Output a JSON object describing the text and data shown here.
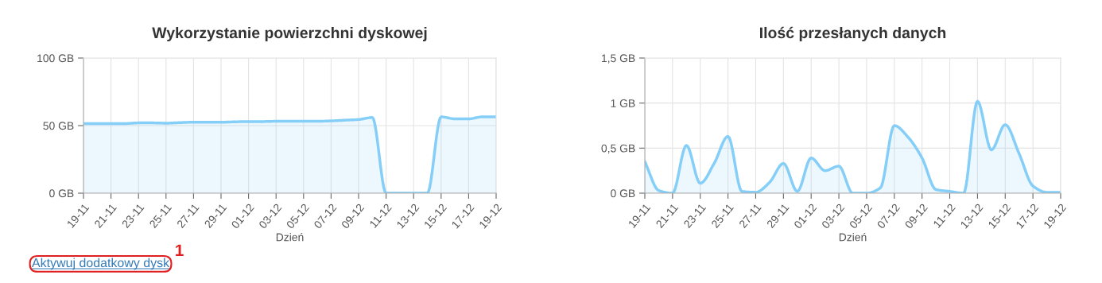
{
  "chart_data": [
    {
      "type": "area",
      "title": "Wykorzystanie powierzchni dyskowej",
      "xlabel": "Dzień",
      "categories": [
        "19-11",
        null,
        "21-11",
        null,
        "23-11",
        null,
        "25-11",
        null,
        "27-11",
        null,
        "29-11",
        null,
        "01-12",
        null,
        "03-12",
        null,
        "05-12",
        null,
        "07-12",
        null,
        "09-12",
        null,
        "11-12",
        null,
        "13-12",
        null,
        "15-12",
        null,
        "17-12",
        null,
        "19-12"
      ],
      "series": [
        {
          "color": "#84cef8",
          "values": [
            51.5,
            51.5,
            51.5,
            51.5,
            52,
            52,
            51.8,
            52.2,
            52.5,
            52.5,
            52.5,
            52.8,
            53,
            53,
            53.2,
            53.2,
            53.2,
            53.2,
            53.5,
            54,
            54.5,
            56,
            0,
            0,
            0,
            0,
            56.5,
            55,
            55,
            56.5,
            56.5
          ]
        }
      ],
      "ylim": [
        0,
        100
      ],
      "yticks": [
        {
          "value": 0,
          "label": "0 GB"
        },
        {
          "value": 50,
          "label": "50 GB"
        },
        {
          "value": 100,
          "label": "100 GB"
        }
      ],
      "grid": true,
      "annotations": [
        "Aktywuj dodatkowy dysk",
        "1"
      ]
    },
    {
      "type": "area",
      "title": "Ilość przesłanych danych",
      "xlabel": "Dzień",
      "categories": [
        "19-11",
        null,
        "21-11",
        null,
        "23-11",
        null,
        "25-11",
        null,
        "27-11",
        null,
        "29-11",
        null,
        "01-12",
        null,
        "03-12",
        null,
        "05-12",
        null,
        "07-12",
        null,
        "09-12",
        null,
        "11-12",
        null,
        "13-12",
        null,
        "15-12",
        null,
        "17-12",
        null,
        "19-12"
      ],
      "series": [
        {
          "color": "#84cef8",
          "values": [
            0.35,
            0.03,
            0,
            0.53,
            0.11,
            0.33,
            0.63,
            0.02,
            0.01,
            0.12,
            0.33,
            0.02,
            0.39,
            0.25,
            0.3,
            0,
            0,
            0.06,
            0.75,
            0.62,
            0.39,
            0.04,
            0.02,
            0,
            1.02,
            0.48,
            0.76,
            0.44,
            0.08,
            0.01,
            0.01
          ]
        }
      ],
      "ylim": [
        0,
        1.5
      ],
      "yticks": [
        {
          "value": 0,
          "label": "0 GB"
        },
        {
          "value": 0.5,
          "label": "0,5 GB"
        },
        {
          "value": 1,
          "label": "1 GB"
        },
        {
          "value": 1.5,
          "label": "1,5 GB"
        }
      ],
      "grid": true
    }
  ]
}
